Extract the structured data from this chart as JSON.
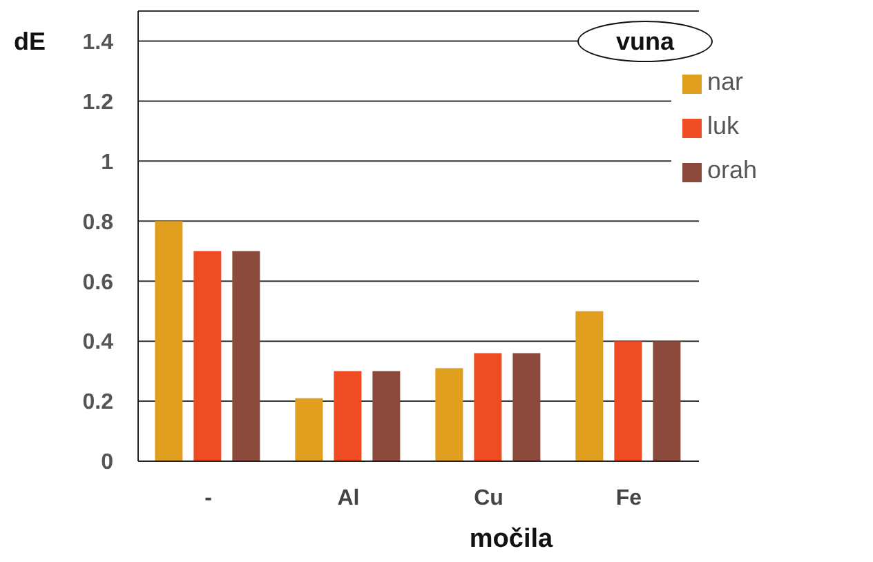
{
  "chart_data": {
    "type": "bar",
    "title": "vuna",
    "ylabel": "dE",
    "xlabel": "močila",
    "categories": [
      "-",
      "Al",
      "Cu",
      "Fe"
    ],
    "series": [
      {
        "name": "nar",
        "color": "#e09f1f",
        "values": [
          0.8,
          0.21,
          0.31,
          0.5
        ]
      },
      {
        "name": "luk",
        "color": "#ee4d23",
        "values": [
          0.7,
          0.3,
          0.36,
          0.4
        ]
      },
      {
        "name": "orah",
        "color": "#8b4a3c",
        "values": [
          0.7,
          0.3,
          0.36,
          0.4
        ]
      }
    ],
    "ylim": [
      0,
      1.5
    ],
    "yticks": [
      0,
      0.2,
      0.4,
      0.6,
      0.8,
      1,
      1.2,
      1.4
    ],
    "grid": "y",
    "legend": "top right"
  }
}
